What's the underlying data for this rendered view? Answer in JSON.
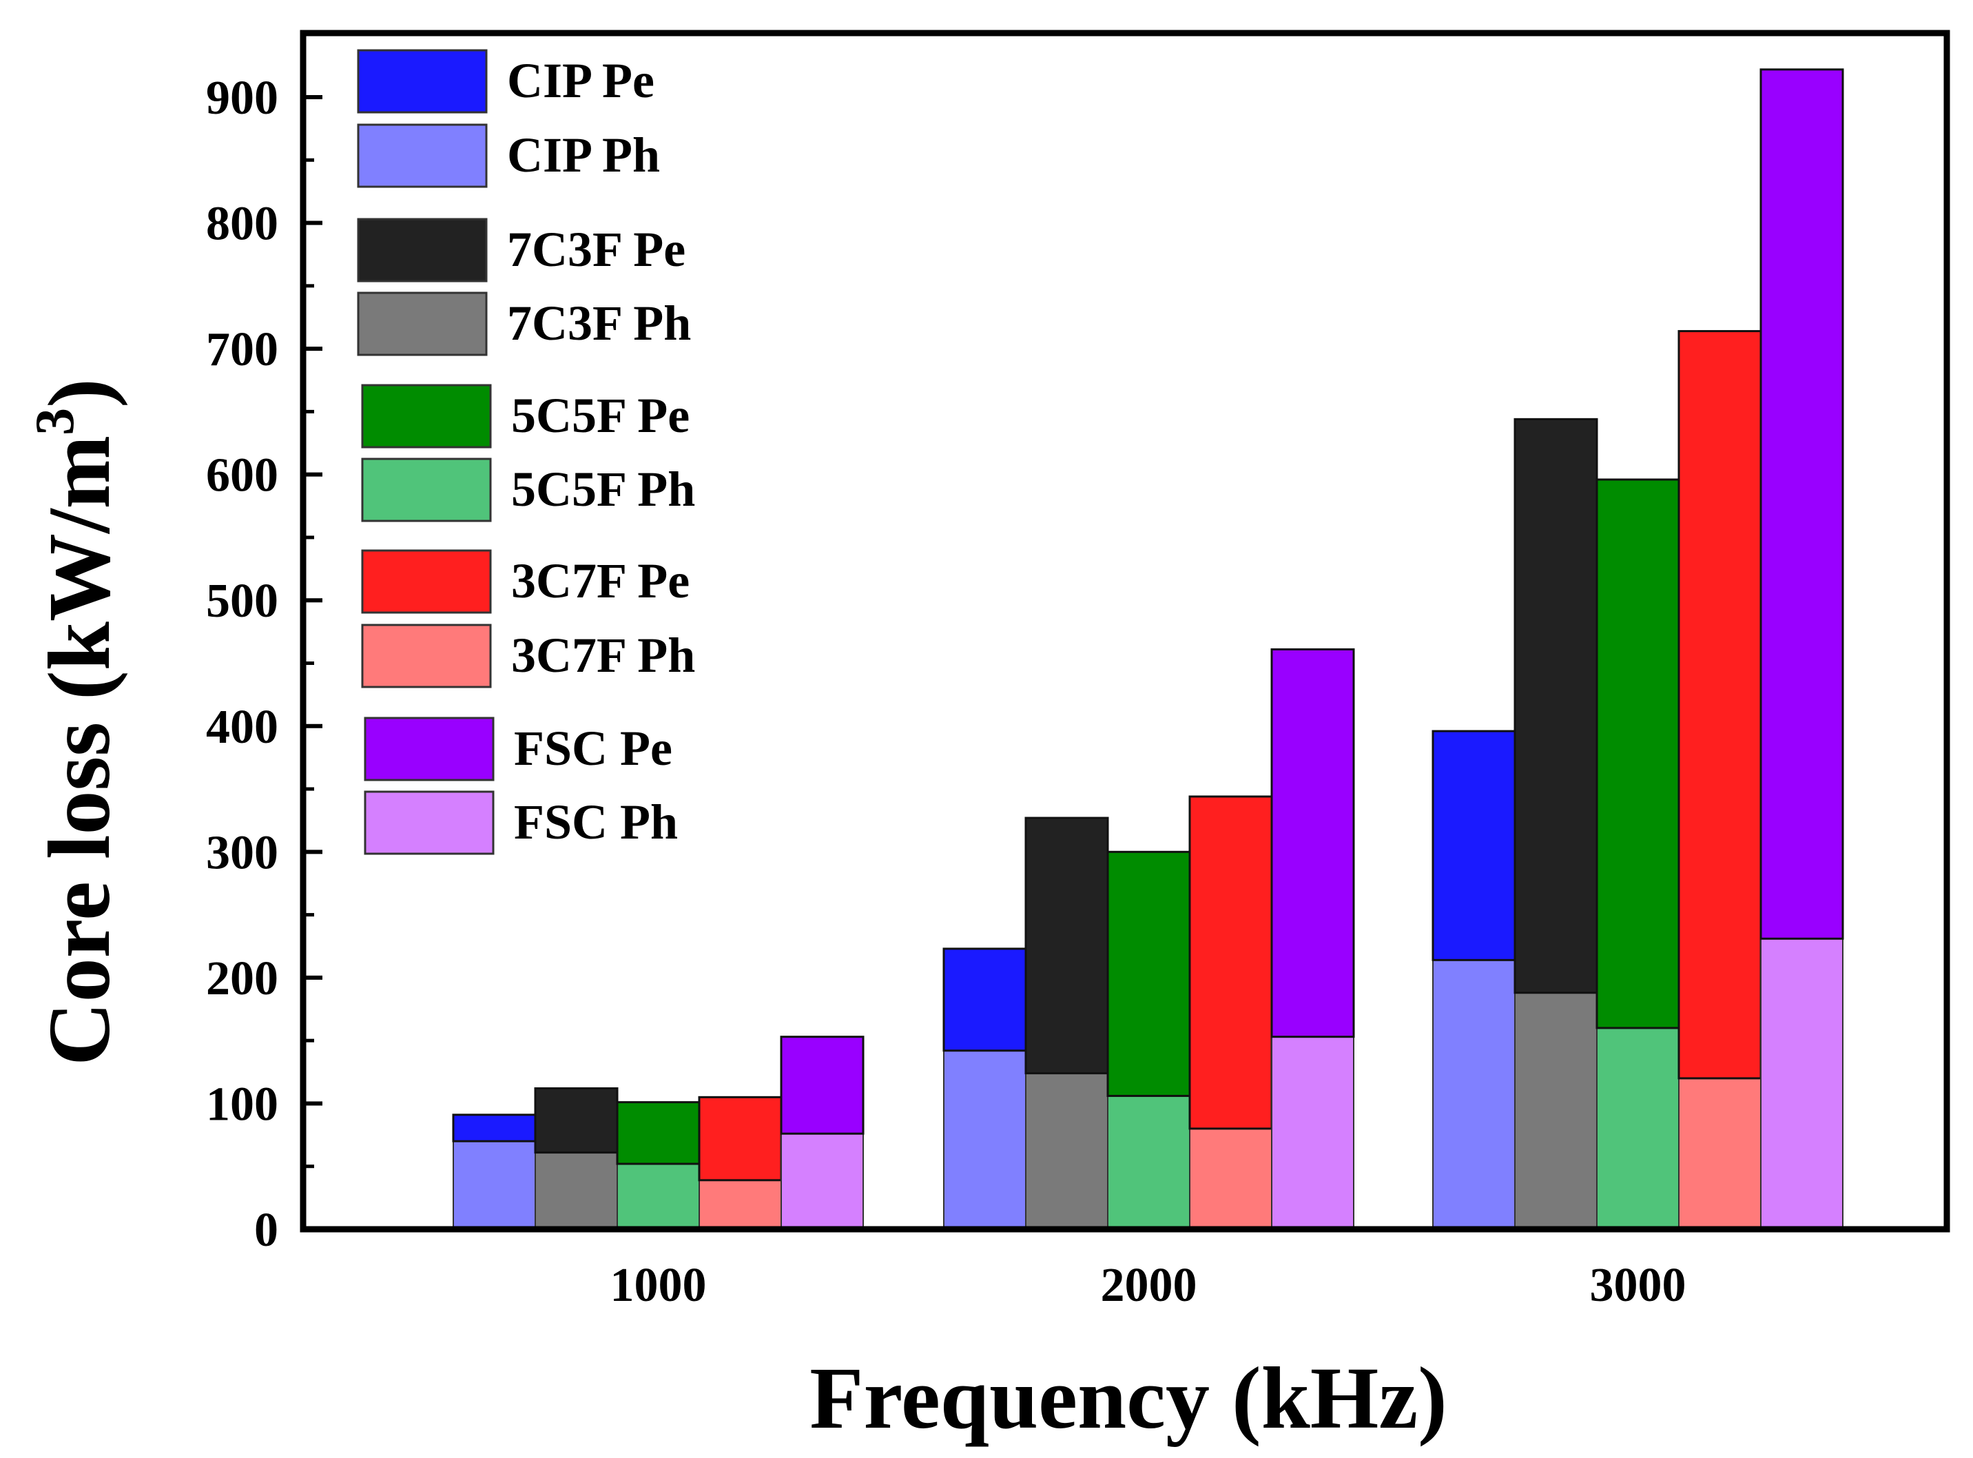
{
  "chart_data": {
    "type": "bar",
    "subtype": "stacked-grouped",
    "title": "",
    "xlabel": "Frequency (kHz)",
    "ylabel": "Core loss (kW/m",
    "ylabel_sup": "3",
    "ylabel_close": ")",
    "ylim": [
      0,
      950
    ],
    "yticks": [
      "0",
      "100",
      "200",
      "300",
      "400",
      "500",
      "600",
      "700",
      "800",
      "900"
    ],
    "categories": [
      "1000",
      "2000",
      "3000"
    ],
    "samples": [
      {
        "name": "CIP",
        "ph_color": "#8080ff",
        "pe_color": "#1a1aff",
        "total": [
          91,
          223,
          396
        ],
        "ph": [
          70,
          142,
          214
        ]
      },
      {
        "name": "7C3F",
        "ph_color": "#7a7a7a",
        "pe_color": "#222222",
        "total": [
          112,
          327,
          644
        ],
        "ph": [
          61,
          124,
          188
        ]
      },
      {
        "name": "5C5F",
        "ph_color": "#50c47a",
        "pe_color": "#008c00",
        "total": [
          101,
          300,
          596
        ],
        "ph": [
          52,
          106,
          160
        ]
      },
      {
        "name": "3C7F",
        "ph_color": "#ff7a7a",
        "pe_color": "#ff1f1f",
        "total": [
          105,
          344,
          714
        ],
        "ph": [
          39,
          80,
          120
        ]
      },
      {
        "name": "FSC",
        "ph_color": "#d580ff",
        "pe_color": "#9900ff",
        "total": [
          153,
          461,
          922
        ],
        "ph": [
          76,
          153,
          231
        ]
      }
    ],
    "legend": [
      {
        "label": "CIP Pe",
        "color": "#1a1aff"
      },
      {
        "label": "CIP Ph",
        "color": "#8080ff"
      },
      {
        "label": "7C3F Pe",
        "color": "#222222"
      },
      {
        "label": "7C3F Ph",
        "color": "#7a7a7a"
      },
      {
        "label": "5C5F Pe",
        "color": "#008c00"
      },
      {
        "label": "5C5F Ph",
        "color": "#50c47a"
      },
      {
        "label": "3C7F Pe",
        "color": "#ff1f1f"
      },
      {
        "label": "3C7F Ph",
        "color": "#ff7a7a"
      },
      {
        "label": "FSC Pe",
        "color": "#9900ff"
      },
      {
        "label": "FSC Ph",
        "color": "#d580ff"
      }
    ],
    "legend_position": "top-left",
    "grid": false
  }
}
